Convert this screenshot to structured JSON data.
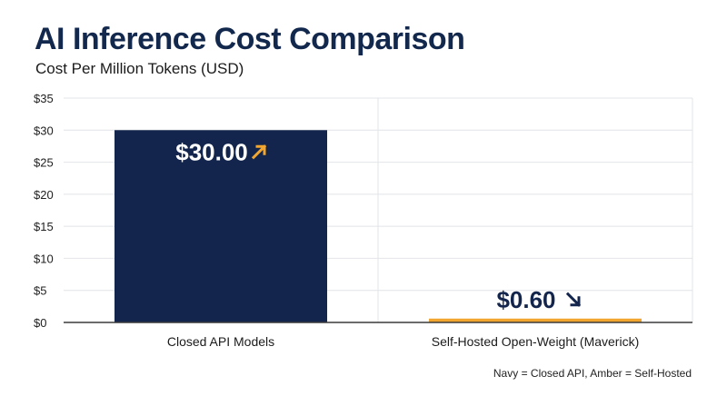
{
  "title": "AI Inference Cost Comparison",
  "subtitle": "Cost Per Million Tokens (USD)",
  "footnote": "Navy = Closed API, Amber = Self-Hosted",
  "colors": {
    "navy": "#13254c",
    "amber": "#f2a62f",
    "grid": "#e2e4e8",
    "axis": "#3a3a3a",
    "label_on_dark": "#ffffff",
    "label_on_light": "#13254c"
  },
  "chart_data": {
    "type": "bar",
    "categories": [
      "Closed API Models",
      "Self-Hosted Open-Weight (Maverick)"
    ],
    "values": [
      30,
      0.6
    ],
    "data_labels": [
      "$30.00",
      "$0.60"
    ],
    "trend_icons": [
      "arrow-up-right-icon",
      "arrow-down-right-icon"
    ],
    "bar_colors": [
      "#13254c",
      "#f2a62f"
    ],
    "ylim": [
      0,
      35
    ],
    "yticks": [
      0,
      5,
      10,
      15,
      20,
      25,
      30,
      35
    ],
    "ytick_labels": [
      "$0",
      "$5",
      "$10",
      "$15",
      "$20",
      "$25",
      "$30",
      "$35"
    ],
    "xlabel": "",
    "ylabel": "",
    "grid": true,
    "legend": "none"
  }
}
